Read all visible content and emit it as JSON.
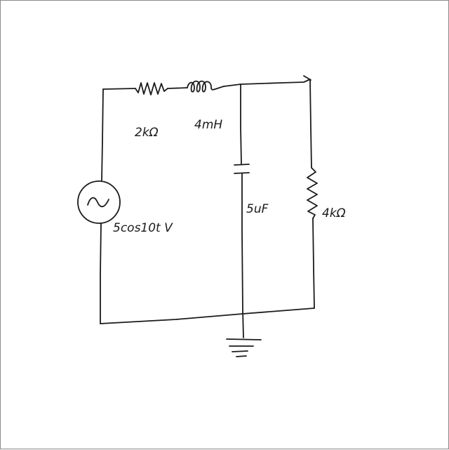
{
  "circuit": {
    "components": {
      "resistor_series": {
        "label": "2kΩ"
      },
      "inductor": {
        "label": "4mH"
      },
      "capacitor": {
        "label": "5uF"
      },
      "resistor_shunt": {
        "label": "4kΩ"
      },
      "source": {
        "label": "5cos10t V"
      }
    }
  }
}
